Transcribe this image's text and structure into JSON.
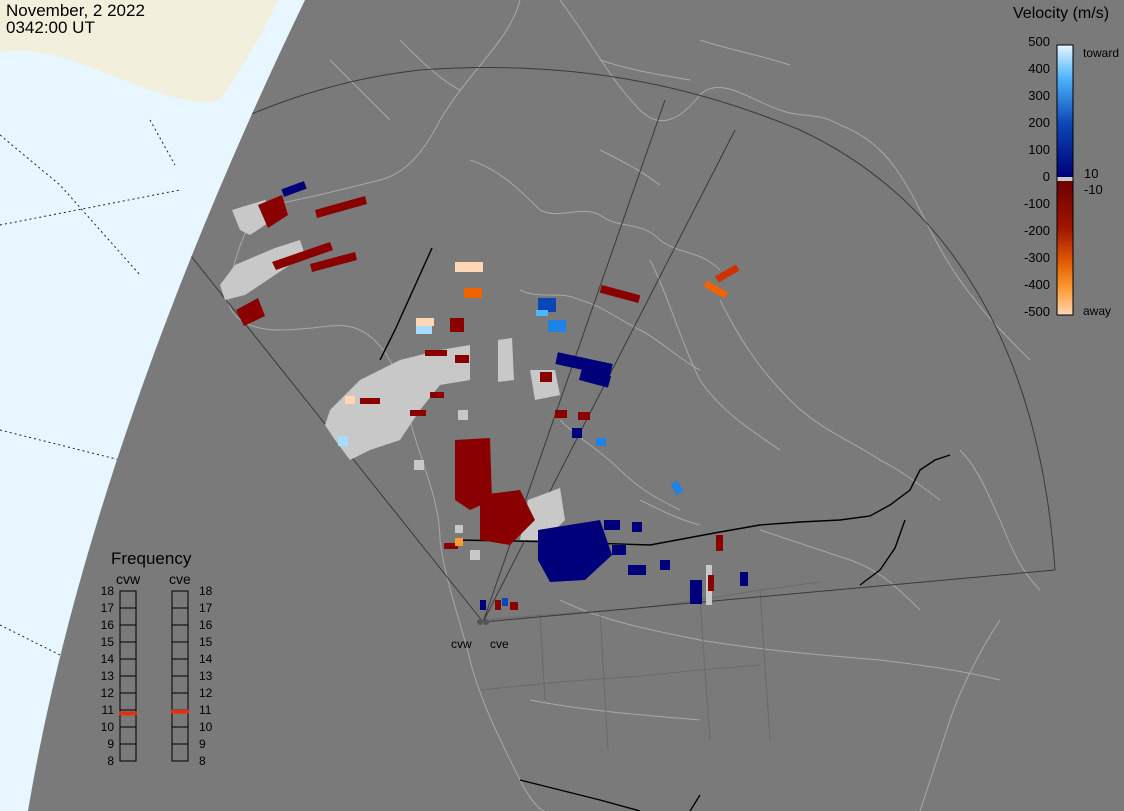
{
  "header": {
    "date": "November, 2 2022",
    "time": "0342:00 UT"
  },
  "velocity_legend": {
    "title": "Velocity (m/s)",
    "ticks": [
      "500",
      "400",
      "300",
      "200",
      "100",
      "0",
      "-100",
      "-200",
      "-300",
      "-400",
      "-500"
    ],
    "zero_labels": [
      "10",
      "-10"
    ],
    "toward_label": "toward",
    "away_label": "away",
    "colors": {
      "toward": [
        "#e6f6ff",
        "#a8dcff",
        "#50b4ff",
        "#1e82e6",
        "#0a46b4",
        "#00007a"
      ],
      "away": [
        "#6e0000",
        "#a01400",
        "#cd3200",
        "#f06400",
        "#ff9a32",
        "#ffd7b4"
      ],
      "ground_scatter": "#c8c8c8"
    }
  },
  "frequency_panel": {
    "title": "Frequency",
    "radars": [
      "cvw",
      "cve"
    ],
    "ticks": [
      "18",
      "17",
      "16",
      "15",
      "14",
      "13",
      "12",
      "11",
      "10",
      "9",
      "8"
    ],
    "frequency_mhz": {
      "cvw": 10.8,
      "cve": 10.9
    },
    "indicator_color": "#e03010"
  },
  "radar_sites": [
    "cvw",
    "cve"
  ],
  "map_colors": {
    "globe": "#7a7a7a",
    "sunlit_land": "#f2f0dc",
    "sunlit_ocean": "#e8f6ff",
    "coast": "#a8a8a8",
    "border": "#000000",
    "fov": "#3a3a3a"
  }
}
